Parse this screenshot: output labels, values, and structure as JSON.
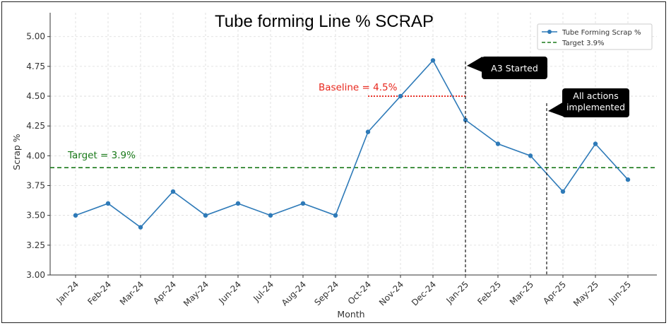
{
  "chart_data": {
    "type": "line",
    "title": "Tube forming Line %  SCRAP",
    "xlabel": "Month",
    "ylabel": "Scrap %",
    "ylim": [
      3.0,
      5.2
    ],
    "yticks": [
      "3.00",
      "3.25",
      "3.50",
      "3.75",
      "4.00",
      "4.25",
      "4.50",
      "4.75",
      "5.00"
    ],
    "ytick_values": [
      3.0,
      3.25,
      3.5,
      3.75,
      4.0,
      4.25,
      4.5,
      4.75,
      5.0
    ],
    "grid": true,
    "legend_position": "top-right",
    "categories": [
      "Jan-24",
      "Feb-24",
      "Mar-24",
      "Apr-24",
      "May-24",
      "Jun-24",
      "Jul-24",
      "Aug-24",
      "Sep-24",
      "Oct-24",
      "Nov-24",
      "Dec-24",
      "Jan-25",
      "Feb-25",
      "Mar-25",
      "Apr-25",
      "May-25",
      "Jun-25"
    ],
    "series": [
      {
        "name": "Tube Forming Scrap %",
        "color": "#2e7ab8",
        "values": [
          3.5,
          3.6,
          3.4,
          3.7,
          3.5,
          3.6,
          3.5,
          3.6,
          3.5,
          4.2,
          4.5,
          4.8,
          4.3,
          4.1,
          4.0,
          3.7,
          4.1,
          3.8
        ]
      }
    ],
    "target": {
      "legend": "Target 3.9%",
      "label": "Target = 3.9%",
      "value": 3.9,
      "color": "#1a7a1a"
    },
    "baseline": {
      "label": "Baseline = 4.5%",
      "value": 4.5,
      "from": "Oct-24",
      "to": "Jan-25",
      "color": "#e8281e"
    },
    "events": [
      {
        "at": "Jan-25",
        "label": "A3 Started"
      },
      {
        "at_between": [
          "Mar-25",
          "Apr-25"
        ],
        "label_lines": [
          "All actions",
          "implemented"
        ]
      }
    ]
  }
}
